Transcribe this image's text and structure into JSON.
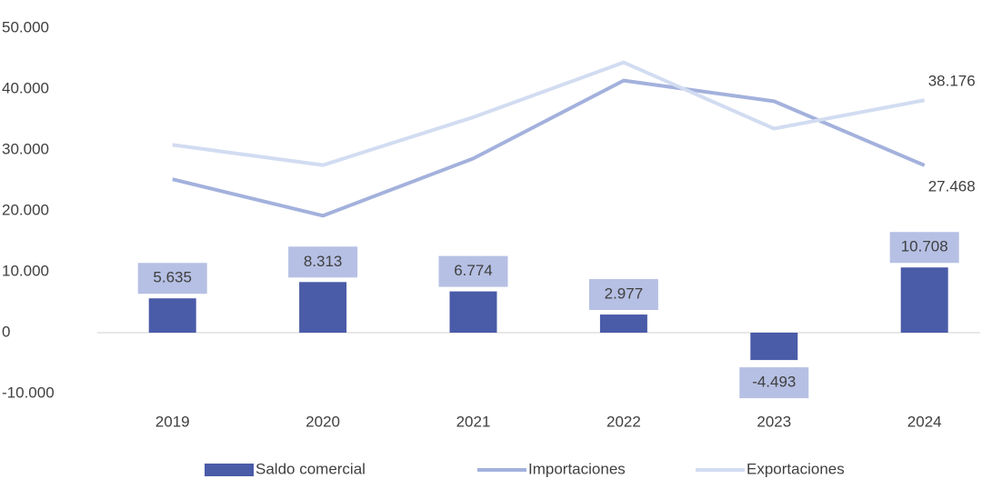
{
  "chart_data": {
    "type": "bar-line",
    "categories": [
      "2019",
      "2020",
      "2021",
      "2022",
      "2023",
      "2024"
    ],
    "series": [
      {
        "name": "Saldo comercial",
        "type": "bar",
        "color": "#4a5ba8",
        "values": [
          5635,
          8313,
          6774,
          2977,
          -4493,
          10708
        ],
        "value_labels": [
          "5.635",
          "8.313",
          "6.774",
          "2.977",
          "-4.493",
          "10.708"
        ]
      },
      {
        "name": "Importaciones",
        "type": "line",
        "color": "#a3b1dc",
        "values": [
          25200,
          19200,
          28600,
          41400,
          38000,
          27468
        ],
        "value_labels": [
          null,
          null,
          null,
          null,
          null,
          "27.468"
        ]
      },
      {
        "name": "Exportaciones",
        "type": "line",
        "color": "#d2dcf1",
        "values": [
          30835,
          27513,
          35374,
          44377,
          33507,
          38176
        ],
        "value_labels": [
          null,
          null,
          null,
          null,
          null,
          "38.176"
        ]
      }
    ],
    "ylim": [
      -10000,
      50000
    ],
    "yticks": [
      {
        "value": -10000,
        "label": "-10.000"
      },
      0,
      {
        "value": 10000,
        "label": "10.000"
      },
      {
        "value": 20000,
        "label": "20.000"
      },
      {
        "value": 30000,
        "label": "30.000"
      },
      {
        "value": 40000,
        "label": "40.000"
      },
      {
        "value": 50000,
        "label": "50.000"
      }
    ],
    "grid": false,
    "legend": "bottom"
  }
}
